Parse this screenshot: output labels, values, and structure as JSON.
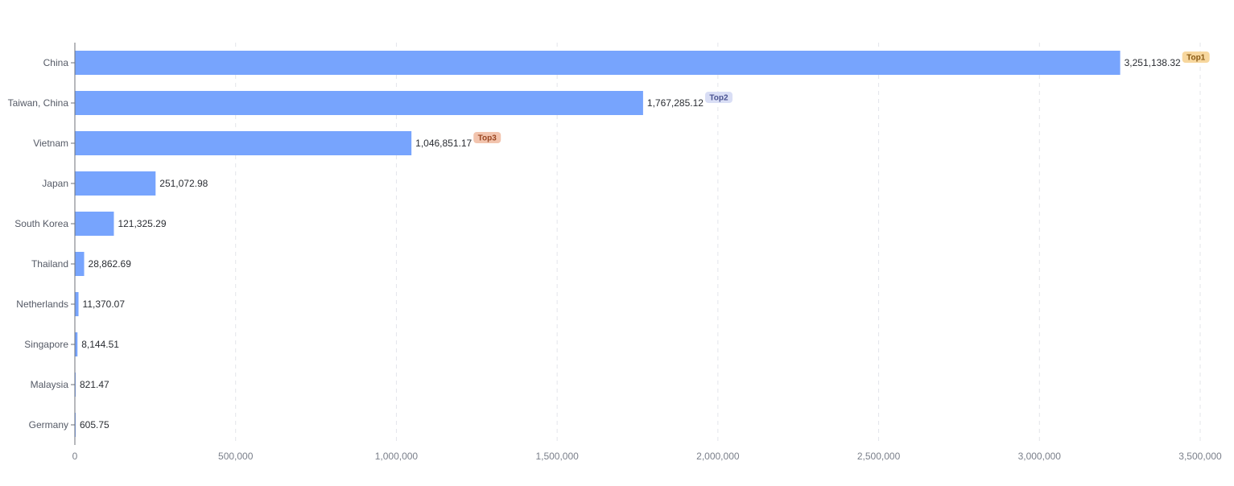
{
  "chart_data": {
    "type": "bar",
    "orientation": "horizontal",
    "categories": [
      "China",
      "Taiwan, China",
      "Vietnam",
      "Japan",
      "South Korea",
      "Thailand",
      "Netherlands",
      "Singapore",
      "Malaysia",
      "Germany"
    ],
    "values": [
      3251138.32,
      1767285.12,
      1046851.17,
      251072.98,
      121325.29,
      28862.69,
      11370.07,
      8144.51,
      821.47,
      605.75
    ],
    "value_labels": [
      "3,251,138.32",
      "1,767,285.12",
      "1,046,851.17",
      "251,072.98",
      "121,325.29",
      "28,862.69",
      "11,370.07",
      "8,144.51",
      "821.47",
      "605.75"
    ],
    "xticks": [
      0,
      500000,
      1000000,
      1500000,
      2000000,
      2500000,
      3000000,
      3500000
    ],
    "xtick_labels": [
      "0",
      "500,000",
      "1,000,000",
      "1,500,000",
      "2,000,000",
      "2,500,000",
      "3,000,000",
      "3,500,000"
    ],
    "xlim": [
      0,
      3500000
    ],
    "title": "",
    "xlabel": "",
    "ylabel": "",
    "grid": "vertical dashed",
    "legend": "none",
    "bar_color": "#77a4fd",
    "badges": [
      {
        "category_index": 0,
        "text": "Top1",
        "bg": "#f7d79e",
        "color": "#8a5a14"
      },
      {
        "category_index": 1,
        "text": "Top2",
        "bg": "#d9def5",
        "color": "#4a5391"
      },
      {
        "category_index": 2,
        "text": "Top3",
        "bg": "#f2c4ae",
        "color": "#9a4621"
      }
    ]
  }
}
